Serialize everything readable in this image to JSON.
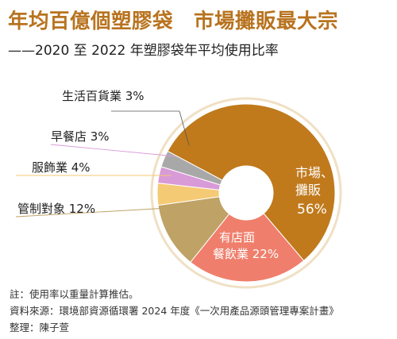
{
  "title": "年均百億個塑膠袋　市場攤販最大宗",
  "subtitle": "——2020 至 2022 年塑膠袋年平均使用比率",
  "chart_data": {
    "type": "pie",
    "variant": "donut",
    "unit": "%",
    "slices": [
      {
        "name": "市場、攤販",
        "value": 56,
        "color": "#c07a1c",
        "label_position": "inside"
      },
      {
        "name": "有店面餐飲業",
        "value": 22,
        "color": "#ef7f6c",
        "label_position": "inside"
      },
      {
        "name": "管制對象",
        "value": 12,
        "color": "#bfa265",
        "label_position": "outside"
      },
      {
        "name": "服飾業",
        "value": 4,
        "color": "#f5ca75",
        "label_position": "outside"
      },
      {
        "name": "早餐店",
        "value": 3,
        "color": "#d99ad8",
        "label_position": "outside"
      },
      {
        "name": "生活百貨業",
        "value": 3,
        "color": "#a8a8a8",
        "label_position": "outside"
      }
    ],
    "labels": {
      "market_line1": "市場、",
      "market_line2": "攤販",
      "market_value": "56%",
      "restaurant_line1": "有店面",
      "restaurant_line2": "餐飲業 22%",
      "regulated": "管制對象 12%",
      "clothing": "服飾業 4%",
      "breakfast": "早餐店 3%",
      "department": "生活百貨業 3%"
    },
    "ring_color": "#f0e0c4"
  },
  "notes": {
    "note": "註：使用率以重量計算推估。",
    "source": "資料來源：環境部資源循環署 2024 年度《一次用產品源頭管理專案計畫》",
    "editor": "整理：陳子萱"
  }
}
